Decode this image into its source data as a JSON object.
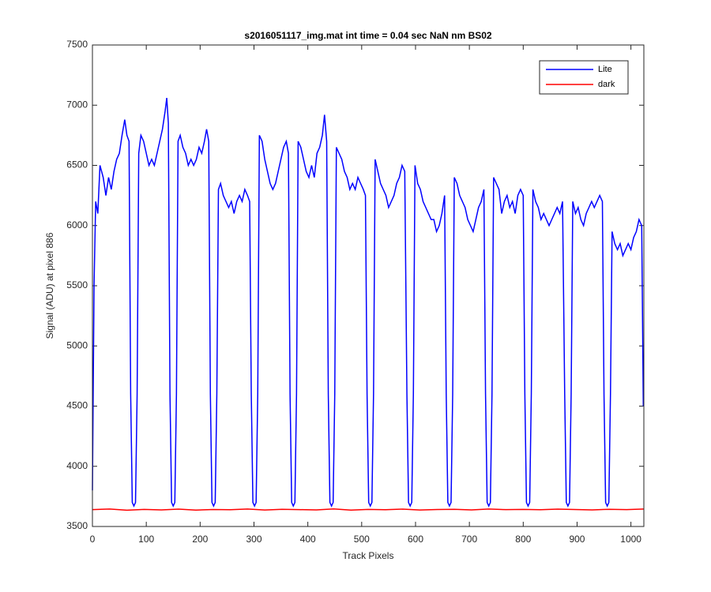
{
  "chart_data": {
    "type": "line",
    "title": "s2016051117_img.mat int time = 0.04 sec  NaN nm BS02",
    "x_label": "Track Pixels",
    "y_label": "Signal (ADU) at pixel 886",
    "xlim": [
      0,
      1024
    ],
    "ylim": [
      3500,
      7500
    ],
    "xticks": [
      0,
      100,
      200,
      300,
      400,
      500,
      600,
      700,
      800,
      900,
      1000
    ],
    "yticks": [
      3500,
      4000,
      4500,
      5000,
      5500,
      6000,
      6500,
      7000,
      7500
    ],
    "grid": false,
    "legend_position": "top-right",
    "series": [
      {
        "name": "Lite",
        "color": "#0000ff",
        "x": [
          0,
          3,
          6,
          10,
          14,
          20,
          25,
          30,
          35,
          40,
          45,
          50,
          55,
          60,
          64,
          68,
          71,
          74,
          77,
          80,
          83,
          86,
          90,
          95,
          100,
          105,
          110,
          115,
          120,
          125,
          130,
          135,
          138,
          141,
          144,
          147,
          150,
          153,
          156,
          159,
          163,
          168,
          173,
          178,
          183,
          188,
          193,
          198,
          203,
          208,
          212,
          216,
          219,
          222,
          225,
          228,
          231,
          234,
          238,
          243,
          248,
          253,
          258,
          263,
          268,
          273,
          278,
          283,
          288,
          292,
          295,
          298,
          301,
          304,
          307,
          310,
          315,
          320,
          325,
          330,
          335,
          340,
          345,
          350,
          355,
          360,
          364,
          367,
          370,
          373,
          376,
          379,
          382,
          387,
          392,
          397,
          402,
          407,
          412,
          417,
          422,
          427,
          431,
          435,
          438,
          441,
          444,
          447,
          450,
          453,
          458,
          463,
          468,
          473,
          478,
          483,
          488,
          493,
          498,
          503,
          507,
          510,
          513,
          516,
          519,
          522,
          525,
          530,
          535,
          540,
          545,
          550,
          555,
          560,
          565,
          570,
          575,
          580,
          584,
          587,
          590,
          593,
          596,
          599,
          604,
          609,
          614,
          619,
          624,
          629,
          634,
          639,
          644,
          649,
          654,
          657,
          660,
          663,
          666,
          669,
          672,
          677,
          682,
          687,
          692,
          697,
          702,
          707,
          712,
          717,
          722,
          727,
          730,
          733,
          736,
          739,
          742,
          745,
          750,
          755,
          760,
          765,
          770,
          775,
          780,
          785,
          790,
          795,
          800,
          803,
          806,
          809,
          812,
          815,
          818,
          823,
          828,
          833,
          838,
          843,
          848,
          853,
          858,
          863,
          868,
          873,
          877,
          880,
          883,
          886,
          889,
          892,
          897,
          902,
          907,
          912,
          917,
          922,
          927,
          932,
          937,
          942,
          947,
          950,
          953,
          956,
          959,
          962,
          965,
          970,
          975,
          980,
          985,
          990,
          995,
          1000,
          1005,
          1010,
          1015,
          1020,
          1023
        ],
        "values": [
          3800,
          5500,
          6200,
          6100,
          6500,
          6400,
          6250,
          6400,
          6300,
          6450,
          6550,
          6600,
          6750,
          6880,
          6750,
          6700,
          4600,
          3700,
          3670,
          3700,
          4600,
          6600,
          6750,
          6700,
          6600,
          6500,
          6550,
          6500,
          6600,
          6700,
          6800,
          6950,
          7060,
          6850,
          4600,
          3700,
          3670,
          3700,
          4600,
          6700,
          6750,
          6650,
          6600,
          6500,
          6550,
          6500,
          6550,
          6650,
          6600,
          6700,
          6800,
          6700,
          4600,
          3700,
          3670,
          3700,
          4600,
          6300,
          6350,
          6250,
          6200,
          6150,
          6200,
          6100,
          6200,
          6250,
          6200,
          6300,
          6250,
          6200,
          4600,
          3700,
          3670,
          3700,
          4600,
          6750,
          6700,
          6550,
          6450,
          6350,
          6300,
          6350,
          6450,
          6550,
          6650,
          6700,
          6600,
          4600,
          3700,
          3670,
          3700,
          4600,
          6700,
          6650,
          6550,
          6450,
          6400,
          6500,
          6400,
          6600,
          6650,
          6750,
          6920,
          6700,
          4600,
          3700,
          3670,
          3700,
          4600,
          6650,
          6600,
          6550,
          6450,
          6400,
          6300,
          6350,
          6300,
          6400,
          6350,
          6300,
          6250,
          4600,
          3700,
          3670,
          3700,
          4600,
          6550,
          6450,
          6350,
          6300,
          6250,
          6150,
          6200,
          6250,
          6350,
          6400,
          6500,
          6450,
          4600,
          3700,
          3670,
          3700,
          4600,
          6500,
          6350,
          6300,
          6200,
          6150,
          6100,
          6050,
          6050,
          5950,
          6000,
          6100,
          6250,
          4600,
          3700,
          3670,
          3700,
          4600,
          6400,
          6350,
          6250,
          6200,
          6150,
          6050,
          6000,
          5950,
          6050,
          6150,
          6200,
          6300,
          4600,
          3700,
          3670,
          3700,
          4600,
          6400,
          6350,
          6300,
          6100,
          6200,
          6250,
          6150,
          6200,
          6100,
          6250,
          6300,
          6250,
          4600,
          3700,
          3670,
          3700,
          4600,
          6300,
          6200,
          6150,
          6050,
          6100,
          6050,
          6000,
          6050,
          6100,
          6150,
          6100,
          6200,
          4600,
          3700,
          3670,
          3700,
          4600,
          6200,
          6100,
          6150,
          6050,
          6000,
          6100,
          6150,
          6200,
          6150,
          6200,
          6250,
          6200,
          4600,
          3700,
          3670,
          3700,
          4600,
          5950,
          5850,
          5800,
          5850,
          5750,
          5800,
          5850,
          5800,
          5900,
          5950,
          6050,
          6000,
          4500
        ]
      },
      {
        "name": "dark",
        "color": "#ff0000",
        "x": [
          0,
          32,
          64,
          96,
          128,
          160,
          192,
          224,
          256,
          288,
          320,
          352,
          384,
          416,
          448,
          480,
          512,
          544,
          576,
          608,
          640,
          672,
          704,
          736,
          768,
          800,
          832,
          864,
          896,
          928,
          960,
          992,
          1024
        ],
        "values": [
          3640,
          3645,
          3635,
          3642,
          3638,
          3644,
          3636,
          3641,
          3639,
          3645,
          3637,
          3643,
          3640,
          3638,
          3646,
          3636,
          3642,
          3639,
          3644,
          3637,
          3641,
          3643,
          3638,
          3645,
          3640,
          3642,
          3639,
          3644,
          3641,
          3638,
          3643,
          3640,
          3645
        ]
      }
    ]
  }
}
